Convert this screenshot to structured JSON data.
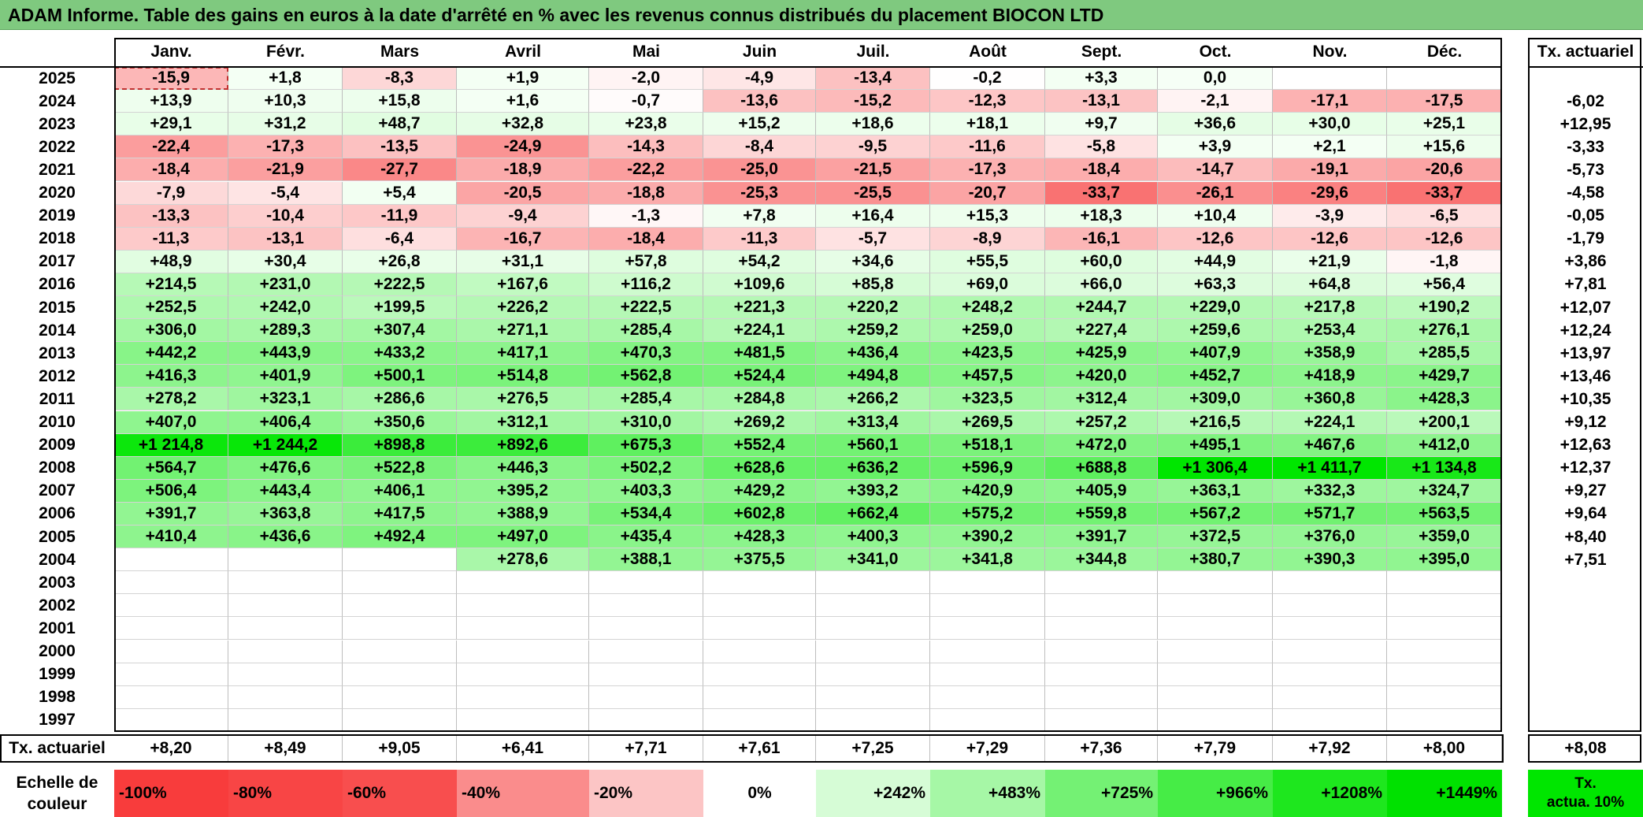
{
  "title": "ADAM Informe. Table des gains en euros à la date d'arrêté en % avec les revenus connus distribués du placement BIOCON LTD",
  "months": [
    "Janv.",
    "Févr.",
    "Mars",
    "Avril",
    "Mai",
    "Juin",
    "Juil.",
    "Août",
    "Sept.",
    "Oct.",
    "Nov.",
    "Déc."
  ],
  "tx_header": "Tx. actuariel",
  "rows": [
    {
      "year": "2025",
      "values": [
        "-15,9",
        "+1,8",
        "-8,3",
        "+1,9",
        "-2,0",
        "-4,9",
        "-13,4",
        "-0,2",
        "+3,3",
        "0,0",
        "",
        ""
      ],
      "tx": ""
    },
    {
      "year": "2024",
      "values": [
        "+13,9",
        "+10,3",
        "+15,8",
        "+1,6",
        "-0,7",
        "-13,6",
        "-15,2",
        "-12,3",
        "-13,1",
        "-2,1",
        "-17,1",
        "-17,5"
      ],
      "tx": "-6,02"
    },
    {
      "year": "2023",
      "values": [
        "+29,1",
        "+31,2",
        "+48,7",
        "+32,8",
        "+23,8",
        "+15,2",
        "+18,6",
        "+18,1",
        "+9,7",
        "+36,6",
        "+30,0",
        "+25,1"
      ],
      "tx": "+12,95"
    },
    {
      "year": "2022",
      "values": [
        "-22,4",
        "-17,3",
        "-13,5",
        "-24,9",
        "-14,3",
        "-8,4",
        "-9,5",
        "-11,6",
        "-5,8",
        "+3,9",
        "+2,1",
        "+15,6"
      ],
      "tx": "-3,33"
    },
    {
      "year": "2021",
      "values": [
        "-18,4",
        "-21,9",
        "-27,7",
        "-18,9",
        "-22,2",
        "-25,0",
        "-21,5",
        "-17,3",
        "-18,4",
        "-14,7",
        "-19,1",
        "-20,6"
      ],
      "tx": "-5,73"
    },
    {
      "year": "2020",
      "values": [
        "-7,9",
        "-5,4",
        "+5,4",
        "-20,5",
        "-18,8",
        "-25,3",
        "-25,5",
        "-20,7",
        "-33,7",
        "-26,1",
        "-29,6",
        "-33,7"
      ],
      "tx": "-4,58"
    },
    {
      "year": "2019",
      "values": [
        "-13,3",
        "-10,4",
        "-11,9",
        "-9,4",
        "-1,3",
        "+7,8",
        "+16,4",
        "+15,3",
        "+18,3",
        "+10,4",
        "-3,9",
        "-6,5"
      ],
      "tx": "-0,05"
    },
    {
      "year": "2018",
      "values": [
        "-11,3",
        "-13,1",
        "-6,4",
        "-16,7",
        "-18,4",
        "-11,3",
        "-5,7",
        "-8,9",
        "-16,1",
        "-12,6",
        "-12,6",
        "-12,6"
      ],
      "tx": "-1,79"
    },
    {
      "year": "2017",
      "values": [
        "+48,9",
        "+30,4",
        "+26,8",
        "+31,1",
        "+57,8",
        "+54,2",
        "+34,6",
        "+55,5",
        "+60,0",
        "+44,9",
        "+21,9",
        "-1,8"
      ],
      "tx": "+3,86"
    },
    {
      "year": "2016",
      "values": [
        "+214,5",
        "+231,0",
        "+222,5",
        "+167,6",
        "+116,2",
        "+109,6",
        "+85,8",
        "+69,0",
        "+66,0",
        "+63,3",
        "+64,8",
        "+56,4"
      ],
      "tx": "+7,81"
    },
    {
      "year": "2015",
      "values": [
        "+252,5",
        "+242,0",
        "+199,5",
        "+226,2",
        "+222,5",
        "+221,3",
        "+220,2",
        "+248,2",
        "+244,7",
        "+229,0",
        "+217,8",
        "+190,2"
      ],
      "tx": "+12,07"
    },
    {
      "year": "2014",
      "values": [
        "+306,0",
        "+289,3",
        "+307,4",
        "+271,1",
        "+285,4",
        "+224,1",
        "+259,2",
        "+259,0",
        "+227,4",
        "+259,6",
        "+253,4",
        "+276,1"
      ],
      "tx": "+12,24"
    },
    {
      "year": "2013",
      "values": [
        "+442,2",
        "+443,9",
        "+433,2",
        "+417,1",
        "+470,3",
        "+481,5",
        "+436,4",
        "+423,5",
        "+425,9",
        "+407,9",
        "+358,9",
        "+285,5"
      ],
      "tx": "+13,97"
    },
    {
      "year": "2012",
      "values": [
        "+416,3",
        "+401,9",
        "+500,1",
        "+514,8",
        "+562,8",
        "+524,4",
        "+494,8",
        "+457,5",
        "+420,0",
        "+452,7",
        "+418,9",
        "+429,7"
      ],
      "tx": "+13,46"
    },
    {
      "year": "2011",
      "values": [
        "+278,2",
        "+323,1",
        "+286,6",
        "+276,5",
        "+285,4",
        "+284,8",
        "+266,2",
        "+323,5",
        "+312,4",
        "+309,0",
        "+360,8",
        "+428,3"
      ],
      "tx": "+10,35"
    },
    {
      "year": "2010",
      "values": [
        "+407,0",
        "+406,4",
        "+350,6",
        "+312,1",
        "+310,0",
        "+269,2",
        "+313,4",
        "+269,5",
        "+257,2",
        "+216,5",
        "+224,1",
        "+200,1"
      ],
      "tx": "+9,12"
    },
    {
      "year": "2009",
      "values": [
        "+1 214,8",
        "+1 244,2",
        "+898,8",
        "+892,6",
        "+675,3",
        "+552,4",
        "+560,1",
        "+518,1",
        "+472,0",
        "+495,1",
        "+467,6",
        "+412,0"
      ],
      "tx": "+12,63"
    },
    {
      "year": "2008",
      "values": [
        "+564,7",
        "+476,6",
        "+522,8",
        "+446,3",
        "+502,2",
        "+628,6",
        "+636,2",
        "+596,9",
        "+688,8",
        "+1 306,4",
        "+1 411,7",
        "+1 134,8"
      ],
      "tx": "+12,37"
    },
    {
      "year": "2007",
      "values": [
        "+506,4",
        "+443,4",
        "+406,1",
        "+395,2",
        "+403,3",
        "+429,2",
        "+393,2",
        "+420,9",
        "+405,9",
        "+363,1",
        "+332,3",
        "+324,7"
      ],
      "tx": "+9,27"
    },
    {
      "year": "2006",
      "values": [
        "+391,7",
        "+363,8",
        "+417,5",
        "+388,9",
        "+534,4",
        "+602,8",
        "+662,4",
        "+575,2",
        "+559,8",
        "+567,2",
        "+571,7",
        "+563,5"
      ],
      "tx": "+9,64"
    },
    {
      "year": "2005",
      "values": [
        "+410,4",
        "+436,6",
        "+492,4",
        "+497,0",
        "+435,4",
        "+428,3",
        "+400,3",
        "+390,2",
        "+391,7",
        "+372,5",
        "+376,0",
        "+359,0"
      ],
      "tx": "+8,40"
    },
    {
      "year": "2004",
      "values": [
        "",
        "",
        "",
        "+278,6",
        "+388,1",
        "+375,5",
        "+341,0",
        "+341,8",
        "+344,8",
        "+380,7",
        "+390,3",
        "+395,0"
      ],
      "tx": "+7,51"
    },
    {
      "year": "2003",
      "values": [
        "",
        "",
        "",
        "",
        "",
        "",
        "",
        "",
        "",
        "",
        "",
        ""
      ],
      "tx": ""
    },
    {
      "year": "2002",
      "values": [
        "",
        "",
        "",
        "",
        "",
        "",
        "",
        "",
        "",
        "",
        "",
        ""
      ],
      "tx": ""
    },
    {
      "year": "2001",
      "values": [
        "",
        "",
        "",
        "",
        "",
        "",
        "",
        "",
        "",
        "",
        "",
        ""
      ],
      "tx": ""
    },
    {
      "year": "2000",
      "values": [
        "",
        "",
        "",
        "",
        "",
        "",
        "",
        "",
        "",
        "",
        "",
        ""
      ],
      "tx": ""
    },
    {
      "year": "1999",
      "values": [
        "",
        "",
        "",
        "",
        "",
        "",
        "",
        "",
        "",
        "",
        "",
        ""
      ],
      "tx": ""
    },
    {
      "year": "1998",
      "values": [
        "",
        "",
        "",
        "",
        "",
        "",
        "",
        "",
        "",
        "",
        "",
        ""
      ],
      "tx": ""
    },
    {
      "year": "1997",
      "values": [
        "",
        "",
        "",
        "",
        "",
        "",
        "",
        "",
        "",
        "",
        "",
        ""
      ],
      "tx": ""
    }
  ],
  "footer": {
    "label": "Tx. actuariel",
    "values": [
      "+8,20",
      "+8,49",
      "+9,05",
      "+6,41",
      "+7,71",
      "+7,61",
      "+7,25",
      "+7,29",
      "+7,36",
      "+7,79",
      "+7,92",
      "+8,00"
    ],
    "tx": "+8,08"
  },
  "scale": {
    "label_line1": "Echelle de",
    "label_line2": "couleur",
    "steps": [
      {
        "label": "-100%",
        "color": "#f83c3c"
      },
      {
        "label": "-80%",
        "color": "#f84545"
      },
      {
        "label": "-60%",
        "color": "#f84e4e"
      },
      {
        "label": "-40%",
        "color": "#fa8c8c"
      },
      {
        "label": "-20%",
        "color": "#fcc5c5"
      },
      {
        "label": "0%",
        "color": "#ffffff"
      },
      {
        "label": "+242%",
        "color": "#d6fcd6"
      },
      {
        "label": "+483%",
        "color": "#a6f7a6"
      },
      {
        "label": "+725%",
        "color": "#74f174"
      },
      {
        "label": "+966%",
        "color": "#46ec46"
      },
      {
        "label": "+1208%",
        "color": "#1ee71e"
      },
      {
        "label": "+1449%",
        "color": "#00e100"
      }
    ],
    "tx_line1": "Tx.",
    "tx_line2": "actua. 10%",
    "tx_color": "#00e600"
  }
}
